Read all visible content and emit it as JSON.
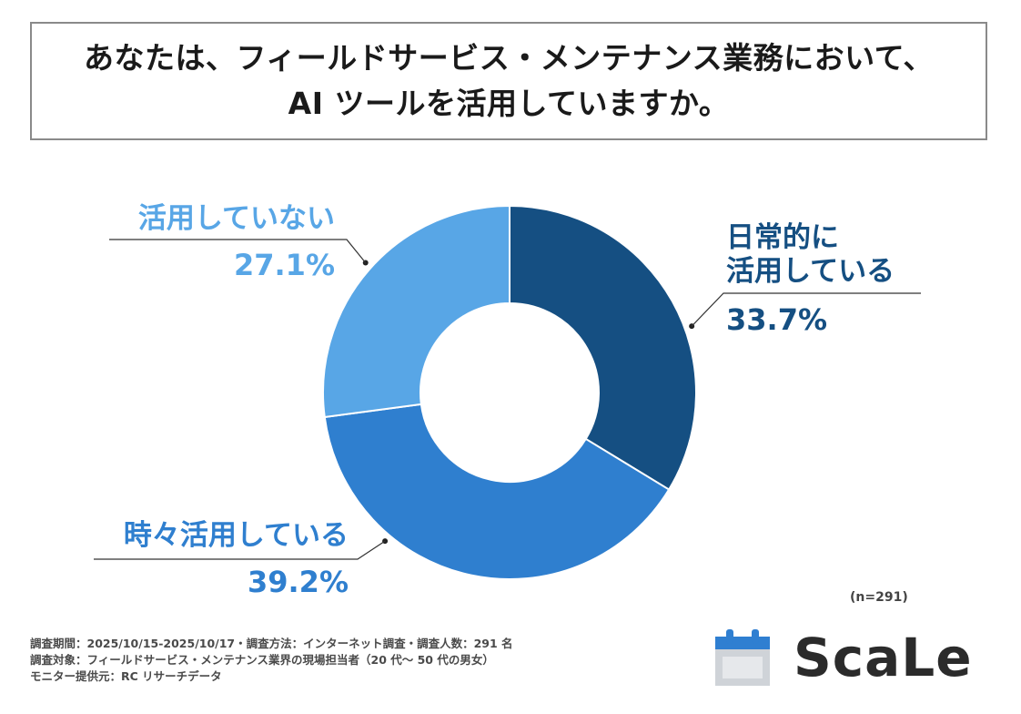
{
  "title": {
    "line1": "あなたは、フィールドサービス・メンテナンス業務において、",
    "line2": "AI ツールを活用していますか。"
  },
  "chart_data": {
    "type": "pie",
    "donut": true,
    "title": "あなたは、フィールドサービス・メンテナンス業務において、AI ツールを活用していますか。",
    "slices": [
      {
        "label_lines": [
          "日常的に",
          "活用している"
        ],
        "value": 33.7,
        "display": "33.7%",
        "color": "#154f82"
      },
      {
        "label_lines": [
          "時々活用している"
        ],
        "value": 39.2,
        "display": "39.2%",
        "color": "#2f7fcf"
      },
      {
        "label_lines": [
          "活用していない"
        ],
        "value": 27.1,
        "display": "27.1%",
        "color": "#58a6e6"
      }
    ]
  },
  "sample_size": "(n=291)",
  "footnotes": [
    "調査期間：2025/10/15-2025/10/17・調査方法：インターネット調査・調査人数：291 名",
    "調査対象：フィールドサービス・メンテナンス業界の現場担当者（20 代～ 50 代の男女）",
    "モニター提供元：RC リサーチデータ"
  ],
  "logo": {
    "text": "ScaLe",
    "icon": "calendar-icon",
    "accent_color": "#2f7fd1"
  }
}
